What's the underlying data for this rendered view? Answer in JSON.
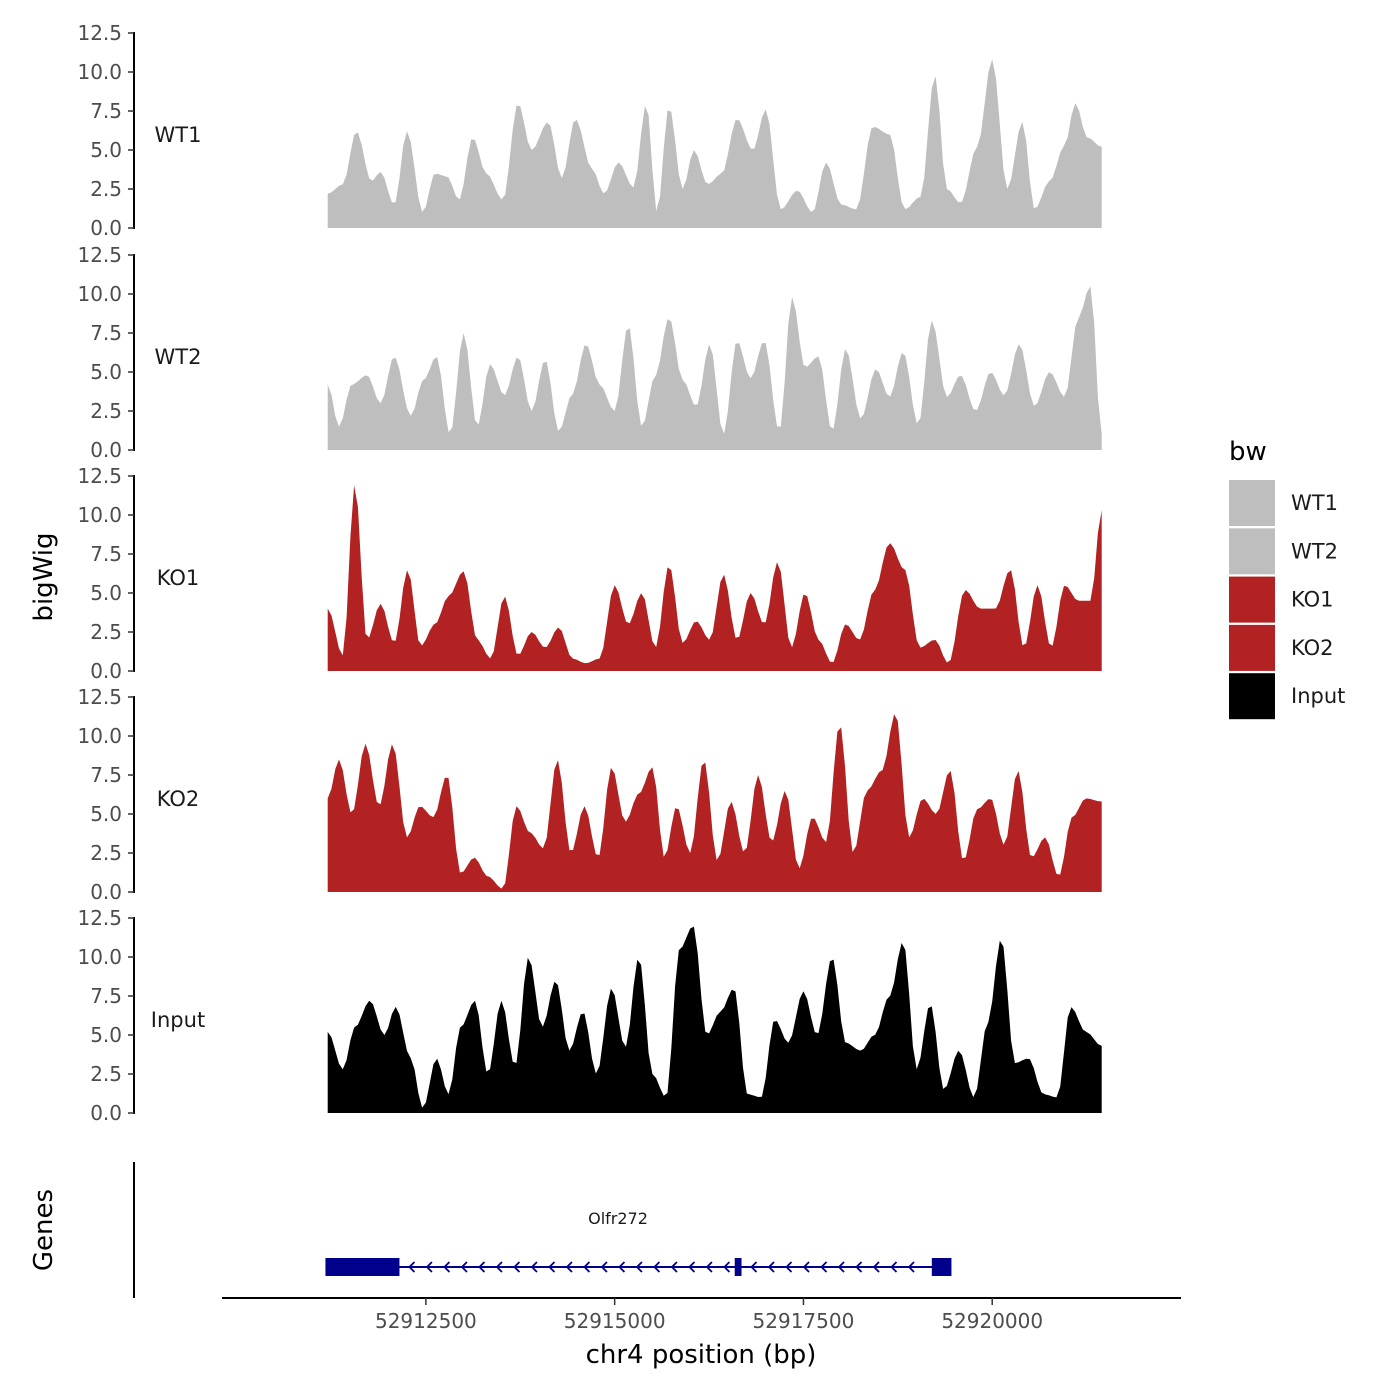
{
  "chart_data": {
    "type": "area",
    "chromosome": "chr4",
    "xlabel": "chr4 position (bp)",
    "ylabel": "bigWig",
    "genes_label": "Genes",
    "xlim": [
      52909800,
      52922500
    ],
    "x_ticks": [
      52912500,
      52915000,
      52917500,
      52920000
    ],
    "x_tick_labels": [
      "52912500",
      "52915000",
      "52917500",
      "52920000"
    ],
    "ylim": [
      0,
      12.5
    ],
    "y_ticks": [
      0,
      2.5,
      5,
      7.5,
      10,
      12.5
    ],
    "y_tick_labels": [
      "0.0",
      "2.5",
      "5.0",
      "7.5",
      "10.0",
      "12.5"
    ],
    "x_start": 52911200,
    "x_end": 52921450,
    "bin_size": 50,
    "legend": {
      "title": "bw",
      "entries": [
        {
          "label": "WT1",
          "color": "#bebebe"
        },
        {
          "label": "WT2",
          "color": "#bebebe"
        },
        {
          "label": "KO1",
          "color": "#b22222"
        },
        {
          "label": "KO2",
          "color": "#b22222"
        },
        {
          "label": "Input",
          "color": "#000000"
        }
      ]
    },
    "series": [
      {
        "name": "WT1",
        "color": "#bebebe",
        "peaks": [
          [
            52911200,
            2.2
          ],
          [
            52911400,
            2.8
          ],
          [
            52911580,
            6.2
          ],
          [
            52911780,
            3.0
          ],
          [
            52911900,
            3.6
          ],
          [
            52912080,
            1.5
          ],
          [
            52912250,
            6.2
          ],
          [
            52912460,
            1.0
          ],
          [
            52912620,
            3.5
          ],
          [
            52912780,
            3.3
          ],
          [
            52912940,
            1.8
          ],
          [
            52913120,
            5.8
          ],
          [
            52913300,
            3.5
          ],
          [
            52913520,
            1.8
          ],
          [
            52913720,
            8.0
          ],
          [
            52913900,
            5.0
          ],
          [
            52914120,
            6.8
          ],
          [
            52914300,
            3.2
          ],
          [
            52914480,
            7.0
          ],
          [
            52914700,
            3.8
          ],
          [
            52914860,
            2.2
          ],
          [
            52915050,
            4.2
          ],
          [
            52915250,
            2.6
          ],
          [
            52915420,
            8.0
          ],
          [
            52915560,
            1.0
          ],
          [
            52915720,
            7.8
          ],
          [
            52915900,
            2.5
          ],
          [
            52916050,
            5.0
          ],
          [
            52916230,
            2.8
          ],
          [
            52916420,
            3.5
          ],
          [
            52916620,
            7.0
          ],
          [
            52916830,
            5.0
          ],
          [
            52917000,
            7.6
          ],
          [
            52917200,
            1.2
          ],
          [
            52917420,
            2.4
          ],
          [
            52917620,
            1.0
          ],
          [
            52917800,
            4.2
          ],
          [
            52918000,
            1.5
          ],
          [
            52918200,
            1.2
          ],
          [
            52918420,
            6.5
          ],
          [
            52918640,
            6.0
          ],
          [
            52918840,
            1.2
          ],
          [
            52919050,
            2.0
          ],
          [
            52919240,
            9.8
          ],
          [
            52919400,
            2.5
          ],
          [
            52919580,
            1.6
          ],
          [
            52919800,
            5.2
          ],
          [
            52920000,
            10.8
          ],
          [
            52920200,
            2.5
          ],
          [
            52920400,
            6.8
          ],
          [
            52920560,
            1.2
          ],
          [
            52920760,
            3.0
          ],
          [
            52920960,
            5.3
          ],
          [
            52921100,
            8.0
          ],
          [
            52921260,
            5.8
          ],
          [
            52921450,
            5.2
          ]
        ]
      },
      {
        "name": "WT2",
        "color": "#bebebe",
        "peaks": [
          [
            52911200,
            4.2
          ],
          [
            52911350,
            1.5
          ],
          [
            52911520,
            4.2
          ],
          [
            52911720,
            4.8
          ],
          [
            52911900,
            3.0
          ],
          [
            52912080,
            6.0
          ],
          [
            52912300,
            2.2
          ],
          [
            52912470,
            4.5
          ],
          [
            52912640,
            6.0
          ],
          [
            52912820,
            1.0
          ],
          [
            52913000,
            7.5
          ],
          [
            52913180,
            1.5
          ],
          [
            52913350,
            5.5
          ],
          [
            52913540,
            3.5
          ],
          [
            52913720,
            6.0
          ],
          [
            52913900,
            2.5
          ],
          [
            52914080,
            5.8
          ],
          [
            52914260,
            1.2
          ],
          [
            52914440,
            3.6
          ],
          [
            52914620,
            6.8
          ],
          [
            52914800,
            4.2
          ],
          [
            52915000,
            2.5
          ],
          [
            52915180,
            8.0
          ],
          [
            52915360,
            1.5
          ],
          [
            52915540,
            4.8
          ],
          [
            52915720,
            8.5
          ],
          [
            52915900,
            4.5
          ],
          [
            52916080,
            2.8
          ],
          [
            52916260,
            6.8
          ],
          [
            52916440,
            1.0
          ],
          [
            52916620,
            7.0
          ],
          [
            52916800,
            4.6
          ],
          [
            52916980,
            7.0
          ],
          [
            52917180,
            1.2
          ],
          [
            52917350,
            9.8
          ],
          [
            52917520,
            5.3
          ],
          [
            52917700,
            6.0
          ],
          [
            52917880,
            1.2
          ],
          [
            52918060,
            6.5
          ],
          [
            52918260,
            2.0
          ],
          [
            52918460,
            5.2
          ],
          [
            52918640,
            3.4
          ],
          [
            52918820,
            6.3
          ],
          [
            52919020,
            1.6
          ],
          [
            52919200,
            8.3
          ],
          [
            52919400,
            3.4
          ],
          [
            52919580,
            4.8
          ],
          [
            52919780,
            2.5
          ],
          [
            52919980,
            5.0
          ],
          [
            52920160,
            3.5
          ],
          [
            52920360,
            6.8
          ],
          [
            52920560,
            2.8
          ],
          [
            52920760,
            5.0
          ],
          [
            52920960,
            3.4
          ],
          [
            52921140,
            8.5
          ],
          [
            52921300,
            10.5
          ],
          [
            52921450,
            1.0
          ]
        ]
      },
      {
        "name": "KO1",
        "color": "#b22222",
        "peaks": [
          [
            52911200,
            4.0
          ],
          [
            52911400,
            1.0
          ],
          [
            52911560,
            12.0
          ],
          [
            52911720,
            2.0
          ],
          [
            52911900,
            4.3
          ],
          [
            52912080,
            1.8
          ],
          [
            52912260,
            6.5
          ],
          [
            52912430,
            1.6
          ],
          [
            52912620,
            3.0
          ],
          [
            52912800,
            4.8
          ],
          [
            52913000,
            6.4
          ],
          [
            52913180,
            2.0
          ],
          [
            52913360,
            0.8
          ],
          [
            52913540,
            4.8
          ],
          [
            52913720,
            1.0
          ],
          [
            52913900,
            2.5
          ],
          [
            52914080,
            1.5
          ],
          [
            52914260,
            2.8
          ],
          [
            52914440,
            0.8
          ],
          [
            52914620,
            0.5
          ],
          [
            52914800,
            0.8
          ],
          [
            52915000,
            5.5
          ],
          [
            52915180,
            3.0
          ],
          [
            52915360,
            5.0
          ],
          [
            52915540,
            1.5
          ],
          [
            52915720,
            6.8
          ],
          [
            52915900,
            1.8
          ],
          [
            52916080,
            3.2
          ],
          [
            52916260,
            2.0
          ],
          [
            52916440,
            6.2
          ],
          [
            52916620,
            2.0
          ],
          [
            52916800,
            5.0
          ],
          [
            52916980,
            3.0
          ],
          [
            52917160,
            7.0
          ],
          [
            52917340,
            1.5
          ],
          [
            52917520,
            5.0
          ],
          [
            52917700,
            2.0
          ],
          [
            52917880,
            0.5
          ],
          [
            52918060,
            3.0
          ],
          [
            52918240,
            2.0
          ],
          [
            52918440,
            5.2
          ],
          [
            52918640,
            8.2
          ],
          [
            52918840,
            6.5
          ],
          [
            52919040,
            1.5
          ],
          [
            52919240,
            2.0
          ],
          [
            52919420,
            0.5
          ],
          [
            52919640,
            5.2
          ],
          [
            52919840,
            4.0
          ],
          [
            52920040,
            4.0
          ],
          [
            52920240,
            6.5
          ],
          [
            52920420,
            1.5
          ],
          [
            52920600,
            5.5
          ],
          [
            52920780,
            1.5
          ],
          [
            52920960,
            5.5
          ],
          [
            52921140,
            4.5
          ],
          [
            52921300,
            4.5
          ],
          [
            52921450,
            10.3
          ]
        ]
      },
      {
        "name": "KO2",
        "color": "#b22222",
        "peaks": [
          [
            52911200,
            6.0
          ],
          [
            52911350,
            8.5
          ],
          [
            52911520,
            5.0
          ],
          [
            52911700,
            9.5
          ],
          [
            52911880,
            5.5
          ],
          [
            52912060,
            9.5
          ],
          [
            52912250,
            3.5
          ],
          [
            52912420,
            5.5
          ],
          [
            52912600,
            4.8
          ],
          [
            52912780,
            7.5
          ],
          [
            52912960,
            1.2
          ],
          [
            52913140,
            2.2
          ],
          [
            52913320,
            1.0
          ],
          [
            52913520,
            0.2
          ],
          [
            52913700,
            5.5
          ],
          [
            52913880,
            3.8
          ],
          [
            52914060,
            2.8
          ],
          [
            52914240,
            8.5
          ],
          [
            52914420,
            2.5
          ],
          [
            52914600,
            5.5
          ],
          [
            52914780,
            2.2
          ],
          [
            52914960,
            8.0
          ],
          [
            52915140,
            4.5
          ],
          [
            52915320,
            6.3
          ],
          [
            52915500,
            8.0
          ],
          [
            52915660,
            2.2
          ],
          [
            52915820,
            5.5
          ],
          [
            52916000,
            2.5
          ],
          [
            52916180,
            8.5
          ],
          [
            52916360,
            2.0
          ],
          [
            52916540,
            5.8
          ],
          [
            52916720,
            2.5
          ],
          [
            52916900,
            7.5
          ],
          [
            52917080,
            3.2
          ],
          [
            52917260,
            6.5
          ],
          [
            52917440,
            1.5
          ],
          [
            52917620,
            4.8
          ],
          [
            52917800,
            3.2
          ],
          [
            52917980,
            10.8
          ],
          [
            52918160,
            2.5
          ],
          [
            52918340,
            6.5
          ],
          [
            52918540,
            7.8
          ],
          [
            52918720,
            11.5
          ],
          [
            52918900,
            3.5
          ],
          [
            52919080,
            6.0
          ],
          [
            52919260,
            5.0
          ],
          [
            52919440,
            7.8
          ],
          [
            52919620,
            2.0
          ],
          [
            52919800,
            5.3
          ],
          [
            52919980,
            6.0
          ],
          [
            52920160,
            3.0
          ],
          [
            52920340,
            7.8
          ],
          [
            52920520,
            2.2
          ],
          [
            52920700,
            3.5
          ],
          [
            52920880,
            1.0
          ],
          [
            52921060,
            4.8
          ],
          [
            52921240,
            6.0
          ],
          [
            52921450,
            5.8
          ]
        ]
      },
      {
        "name": "Input",
        "color": "#000000",
        "peaks": [
          [
            52911200,
            5.2
          ],
          [
            52911400,
            2.8
          ],
          [
            52911560,
            5.5
          ],
          [
            52911760,
            7.2
          ],
          [
            52911950,
            5.0
          ],
          [
            52912100,
            6.8
          ],
          [
            52912300,
            3.5
          ],
          [
            52912460,
            0.3
          ],
          [
            52912640,
            3.5
          ],
          [
            52912800,
            1.2
          ],
          [
            52912960,
            5.5
          ],
          [
            52913150,
            7.2
          ],
          [
            52913320,
            2.5
          ],
          [
            52913500,
            7.2
          ],
          [
            52913680,
            3.0
          ],
          [
            52913860,
            10.0
          ],
          [
            52914040,
            5.5
          ],
          [
            52914220,
            8.5
          ],
          [
            52914400,
            4.0
          ],
          [
            52914580,
            6.5
          ],
          [
            52914760,
            2.5
          ],
          [
            52914960,
            8.0
          ],
          [
            52915140,
            4.2
          ],
          [
            52915320,
            10.0
          ],
          [
            52915500,
            2.5
          ],
          [
            52915680,
            1.0
          ],
          [
            52915860,
            10.5
          ],
          [
            52916040,
            12.0
          ],
          [
            52916220,
            5.0
          ],
          [
            52916400,
            6.5
          ],
          [
            52916580,
            8.0
          ],
          [
            52916760,
            1.2
          ],
          [
            52916940,
            1.0
          ],
          [
            52917120,
            6.0
          ],
          [
            52917300,
            4.5
          ],
          [
            52917500,
            7.8
          ],
          [
            52917680,
            5.0
          ],
          [
            52917880,
            10.0
          ],
          [
            52918060,
            4.5
          ],
          [
            52918260,
            4.0
          ],
          [
            52918440,
            5.0
          ],
          [
            52918640,
            7.5
          ],
          [
            52918820,
            11.0
          ],
          [
            52919000,
            2.8
          ],
          [
            52919180,
            7.0
          ],
          [
            52919360,
            1.5
          ],
          [
            52919560,
            4.0
          ],
          [
            52919760,
            1.0
          ],
          [
            52919940,
            5.8
          ],
          [
            52920120,
            11.2
          ],
          [
            52920300,
            3.2
          ],
          [
            52920480,
            3.5
          ],
          [
            52920680,
            1.2
          ],
          [
            52920860,
            1.0
          ],
          [
            52921040,
            6.8
          ],
          [
            52921240,
            5.2
          ],
          [
            52921450,
            4.3
          ]
        ]
      }
    ],
    "gene": {
      "name": "Olfr272",
      "color": "#00008b",
      "start": 52911170,
      "end": 52919460,
      "exons": [
        [
          52911170,
          52912150
        ],
        [
          52916590,
          52916680
        ],
        [
          52919200,
          52919460
        ]
      ],
      "strand": "-"
    }
  }
}
